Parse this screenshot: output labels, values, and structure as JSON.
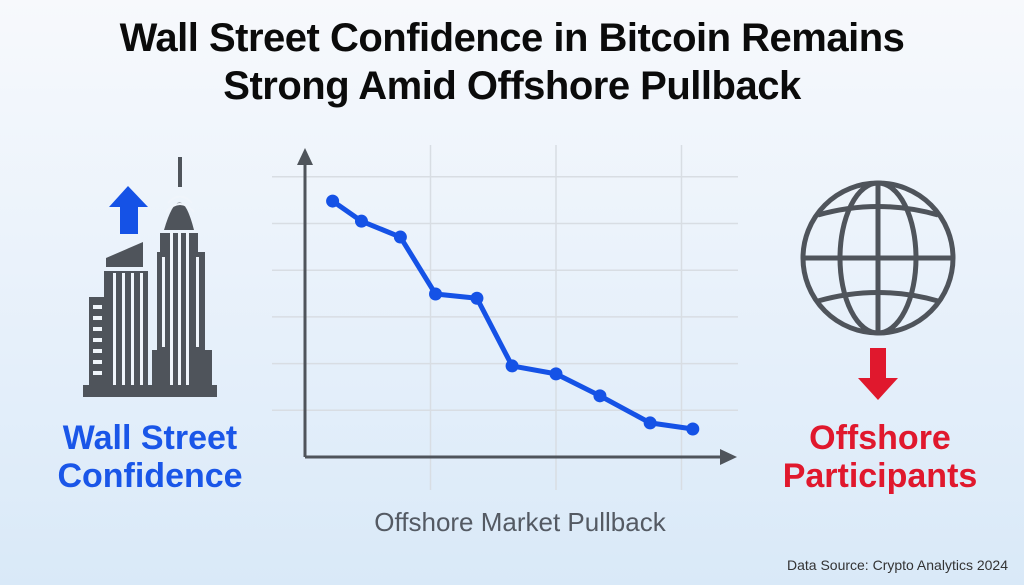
{
  "title_line1": "Wall Street Confidence in Bitcoin Remains",
  "title_line2": "Strong Amid Offshore Pullback",
  "left_label": {
    "line1": "Wall Street",
    "line2": "Confidence",
    "icon": "skyscraper-icon",
    "arrow": "arrow-up-icon",
    "color": "#1a56e8"
  },
  "right_label": {
    "line1": "Offshore",
    "line2": "Participants",
    "icon": "globe-icon",
    "arrow": "arrow-down-icon",
    "color": "#e0182d"
  },
  "source": "Data Source: Crypto Analytics 2024",
  "chart_data": {
    "type": "line",
    "title": "",
    "xlabel": "Offshore Market Pullback",
    "ylabel": "",
    "tick_labels": "none",
    "grid": true,
    "xlim": [
      0,
      3.45
    ],
    "ylim": [
      0,
      6.4
    ],
    "line_color": "#1552e6",
    "series": [
      {
        "x": [
          0.22,
          0.45,
          0.76,
          1.04,
          1.37,
          1.65,
          2.0,
          2.35,
          2.75,
          3.09
        ],
        "y": [
          5.48,
          5.05,
          4.71,
          3.49,
          3.4,
          1.95,
          1.78,
          1.31,
          0.73,
          0.6
        ]
      }
    ]
  }
}
